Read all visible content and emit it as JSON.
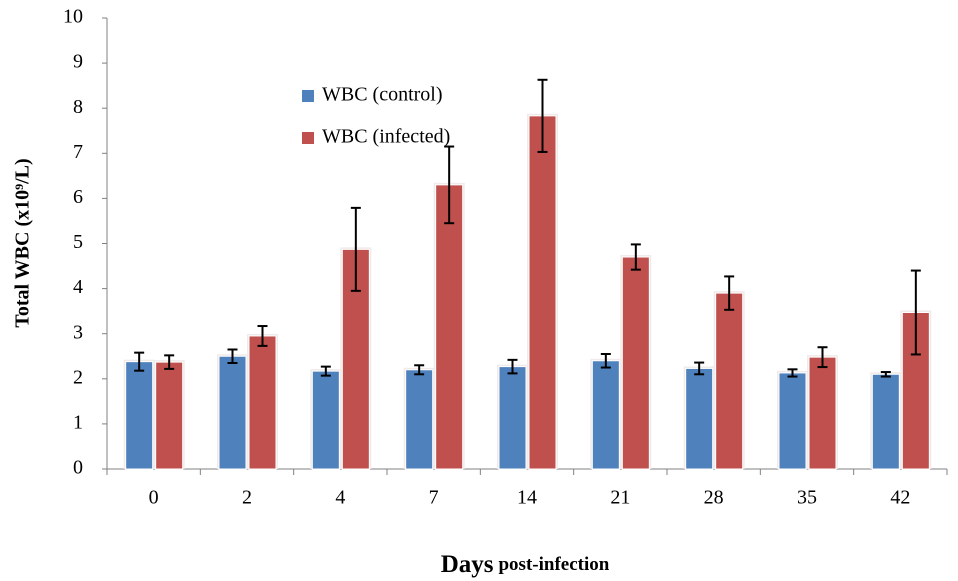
{
  "chart_data": {
    "type": "bar",
    "ylabel": "Total WBC (x10⁹/L)",
    "xlabel": [
      "Days",
      "post-infection"
    ],
    "categories": [
      "0",
      "2",
      "4",
      "7",
      "14",
      "21",
      "28",
      "35",
      "42"
    ],
    "series": [
      {
        "name": "WBC (control)",
        "color": "#4f81bd",
        "values": [
          2.38,
          2.5,
          2.17,
          2.2,
          2.27,
          2.4,
          2.23,
          2.13,
          2.1
        ],
        "errors": [
          0.2,
          0.15,
          0.1,
          0.1,
          0.15,
          0.15,
          0.13,
          0.08,
          0.05
        ]
      },
      {
        "name": "WBC (infected)",
        "color": "#c0504d",
        "values": [
          2.37,
          2.95,
          4.87,
          6.3,
          7.83,
          4.7,
          3.9,
          2.48,
          3.47
        ],
        "errors": [
          0.15,
          0.22,
          0.92,
          0.85,
          0.8,
          0.28,
          0.37,
          0.22,
          0.93
        ]
      }
    ],
    "ylim": [
      0,
      10
    ],
    "yticks": [
      0,
      1,
      2,
      3,
      4,
      5,
      6,
      7,
      8,
      9,
      10
    ],
    "grid": false
  }
}
